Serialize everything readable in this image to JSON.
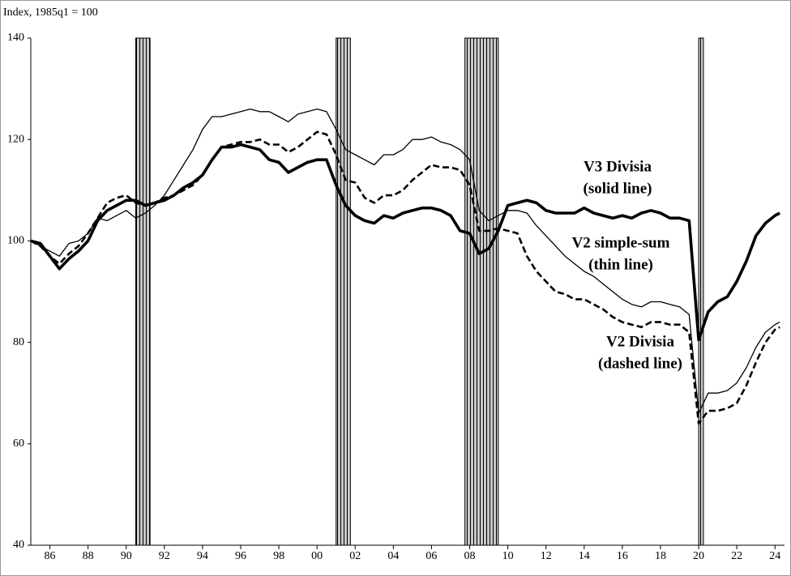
{
  "chart_data": {
    "type": "line",
    "y_axis_label": "Index, 1985q1 = 100",
    "xlim": [
      1985,
      2024.5
    ],
    "ylim": [
      40,
      140
    ],
    "yticks": [
      40,
      60,
      80,
      100,
      120,
      140
    ],
    "xticks": [
      {
        "value": 1986,
        "label": "86"
      },
      {
        "value": 1988,
        "label": "88"
      },
      {
        "value": 1990,
        "label": "90"
      },
      {
        "value": 1992,
        "label": "92"
      },
      {
        "value": 1994,
        "label": "94"
      },
      {
        "value": 1996,
        "label": "96"
      },
      {
        "value": 1998,
        "label": "98"
      },
      {
        "value": 2000,
        "label": "00"
      },
      {
        "value": 2002,
        "label": "02"
      },
      {
        "value": 2004,
        "label": "04"
      },
      {
        "value": 2006,
        "label": "06"
      },
      {
        "value": 2008,
        "label": "08"
      },
      {
        "value": 2010,
        "label": "10"
      },
      {
        "value": 2012,
        "label": "12"
      },
      {
        "value": 2014,
        "label": "14"
      },
      {
        "value": 2016,
        "label": "16"
      },
      {
        "value": 2018,
        "label": "18"
      },
      {
        "value": 2020,
        "label": "20"
      },
      {
        "value": 2022,
        "label": "22"
      },
      {
        "value": 2024,
        "label": "24"
      }
    ],
    "grid": false,
    "shaded_periods": [
      [
        1990.5,
        1991.25
      ],
      [
        2001.0,
        2001.75
      ],
      [
        2007.75,
        2009.5
      ],
      [
        2020.0,
        2020.25
      ]
    ],
    "x": [
      1985.0,
      1985.5,
      1986.0,
      1986.5,
      1987.0,
      1987.5,
      1988.0,
      1988.5,
      1989.0,
      1989.5,
      1990.0,
      1990.5,
      1991.0,
      1991.5,
      1992.0,
      1992.5,
      1993.0,
      1993.5,
      1994.0,
      1994.5,
      1995.0,
      1995.5,
      1996.0,
      1996.5,
      1997.0,
      1997.5,
      1998.0,
      1998.5,
      1999.0,
      1999.5,
      2000.0,
      2000.5,
      2001.0,
      2001.5,
      2002.0,
      2002.5,
      2003.0,
      2003.5,
      2004.0,
      2004.5,
      2005.0,
      2005.5,
      2006.0,
      2006.5,
      2007.0,
      2007.5,
      2008.0,
      2008.5,
      2009.0,
      2009.5,
      2010.0,
      2010.5,
      2011.0,
      2011.5,
      2012.0,
      2012.5,
      2013.0,
      2013.5,
      2014.0,
      2014.5,
      2015.0,
      2015.5,
      2016.0,
      2016.5,
      2017.0,
      2017.5,
      2018.0,
      2018.5,
      2019.0,
      2019.5,
      2020.0,
      2020.5,
      2021.0,
      2021.5,
      2022.0,
      2022.5,
      2023.0,
      2023.5,
      2024.0,
      2024.25
    ],
    "series": [
      {
        "name": "V3 Divisia",
        "color": "#000000",
        "style": "thick",
        "values": [
          100,
          99.5,
          97,
          94.5,
          96.5,
          98,
          100,
          104,
          106,
          107,
          108,
          108,
          107,
          107.5,
          108,
          109,
          110.5,
          111.5,
          113,
          116,
          118.5,
          118.5,
          119,
          118.5,
          118,
          116,
          115.5,
          113.5,
          114.5,
          115.5,
          116,
          116,
          111,
          107,
          105,
          104,
          103.5,
          105,
          104.5,
          105.5,
          106,
          106.5,
          106.5,
          106,
          105,
          102,
          101.5,
          97.5,
          98.5,
          102,
          107,
          107.5,
          108,
          107.5,
          106,
          105.5,
          105.5,
          105.5,
          106.5,
          105.5,
          105,
          104.5,
          105,
          104.5,
          105.5,
          106,
          105.5,
          104.5,
          104.5,
          104,
          80.5,
          86,
          88,
          89,
          92,
          96,
          101,
          103.5,
          105,
          105.5
        ]
      },
      {
        "name": "V2 simple-sum",
        "color": "#000000",
        "style": "thin",
        "values": [
          100,
          99,
          98,
          97,
          99.5,
          100,
          101.5,
          104.5,
          104,
          105,
          106,
          104.5,
          105.5,
          107,
          109,
          112,
          115,
          118,
          122,
          124.5,
          124.5,
          125,
          125.5,
          126,
          125.5,
          125.5,
          124.5,
          123.5,
          125,
          125.5,
          126,
          125.5,
          122,
          118,
          117,
          116,
          115,
          117,
          117,
          118,
          120,
          120,
          120.5,
          119.5,
          119,
          118,
          116,
          106,
          104,
          105,
          106,
          106,
          105.5,
          103,
          101,
          99,
          97,
          95.5,
          94,
          93,
          91.5,
          90,
          88.5,
          87.5,
          87,
          88,
          88,
          87.5,
          87,
          85.5,
          66,
          70,
          70,
          70.5,
          72,
          75,
          79,
          82,
          83.5,
          84
        ]
      },
      {
        "name": "V2 Divisia",
        "color": "#000000",
        "style": "dashed",
        "values": [
          100,
          99,
          97,
          95.5,
          97.5,
          99,
          101.5,
          104.5,
          107.5,
          108.5,
          109,
          107.5,
          107,
          107.5,
          108.5,
          109,
          110,
          111,
          113,
          116,
          118.5,
          119,
          119.5,
          119.5,
          120,
          119,
          119,
          117.5,
          118.5,
          120,
          121.5,
          121,
          117,
          112,
          111.5,
          108.5,
          107.5,
          109,
          109,
          110,
          112,
          113.5,
          115,
          114.5,
          114.5,
          114,
          111,
          102,
          102,
          102.5,
          102,
          101.5,
          97,
          94,
          92,
          90,
          89.5,
          88.5,
          88.5,
          87.5,
          86.5,
          85,
          84,
          83.5,
          83,
          84,
          84,
          83.5,
          83.5,
          82,
          64,
          66.5,
          66.5,
          67,
          68,
          71.5,
          76,
          80,
          82.5,
          83
        ]
      }
    ],
    "annotations": [
      [
        "V3 Divisia",
        "(solid line)"
      ],
      [
        "V2 simple-sum",
        "(thin line)"
      ],
      [
        "V2 Divisia",
        "(dashed line)"
      ]
    ]
  }
}
